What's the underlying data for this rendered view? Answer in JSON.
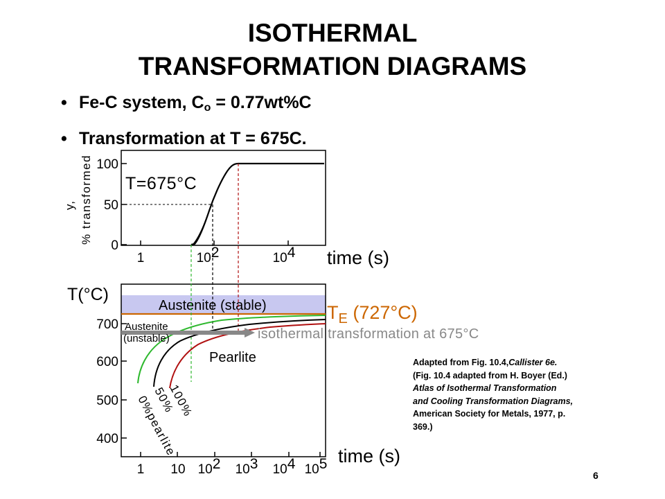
{
  "title": {
    "line1": "ISOTHERMAL",
    "line2": "TRANSFORMATION DIAGRAMS"
  },
  "bullets": [
    {
      "pre": "Fe-C system, C",
      "sub": "o",
      "post": " = 0.77wt%C"
    },
    {
      "pre": "Transformation at T = 675C.",
      "sub": "",
      "post": ""
    }
  ],
  "top_plot": {
    "ylabel_line1": "y,",
    "ylabel_line2": "% transformed",
    "yticks": [
      "100",
      "50",
      "0"
    ],
    "xticks": [
      {
        "base": "1",
        "exp": ""
      },
      {
        "base": "10",
        "exp": "2"
      },
      {
        "base": "10",
        "exp": "4"
      }
    ],
    "temp_label": "T=675°C",
    "xlabel": "time (s)"
  },
  "bottom_plot": {
    "ylabel": "T(°C)",
    "yticks": [
      "700",
      "600",
      "500",
      "400"
    ],
    "xticks": [
      {
        "base": "1",
        "exp": ""
      },
      {
        "base": "10",
        "exp": ""
      },
      {
        "base": "10",
        "exp": "2"
      },
      {
        "base": "10",
        "exp": "3"
      },
      {
        "base": "10",
        "exp": "4"
      },
      {
        "base": "10",
        "exp": "5"
      }
    ],
    "xlabel": "time (s)",
    "austenite_stable": "Austenite (stable)",
    "austenite_unstable_1": "Austenite",
    "austenite_unstable_2": "(unstable)",
    "pearlite": "Pearlite",
    "te_main": "T",
    "te_sub": "E",
    "te_value": " (727°C)",
    "isothermal_label": "isothermal transformation at 675°C",
    "curve_labels": {
      "c0": "0%pearlite",
      "c50": "50%",
      "c100": "100%"
    }
  },
  "caption": {
    "line1": "Adapted from Fig. 10.4,",
    "line1_it": "Callister 6e.",
    "line2": "(Fig. 10.4 adapted from H. Boyer (Ed.)",
    "line3": "Atlas of Isothermal Transformation",
    "line4": "and Cooling Transformation Diagrams,",
    "line5": "American Society for Metals, 1977, p.",
    "line6": "369.)"
  },
  "page_number": "6",
  "colors": {
    "start_curve": "#2eb82e",
    "mid_curve": "#000000",
    "end_curve": "#b01010",
    "te_line": "#cc6600",
    "stable_fill": "#c8c8f0",
    "arrow": "#888888"
  }
}
